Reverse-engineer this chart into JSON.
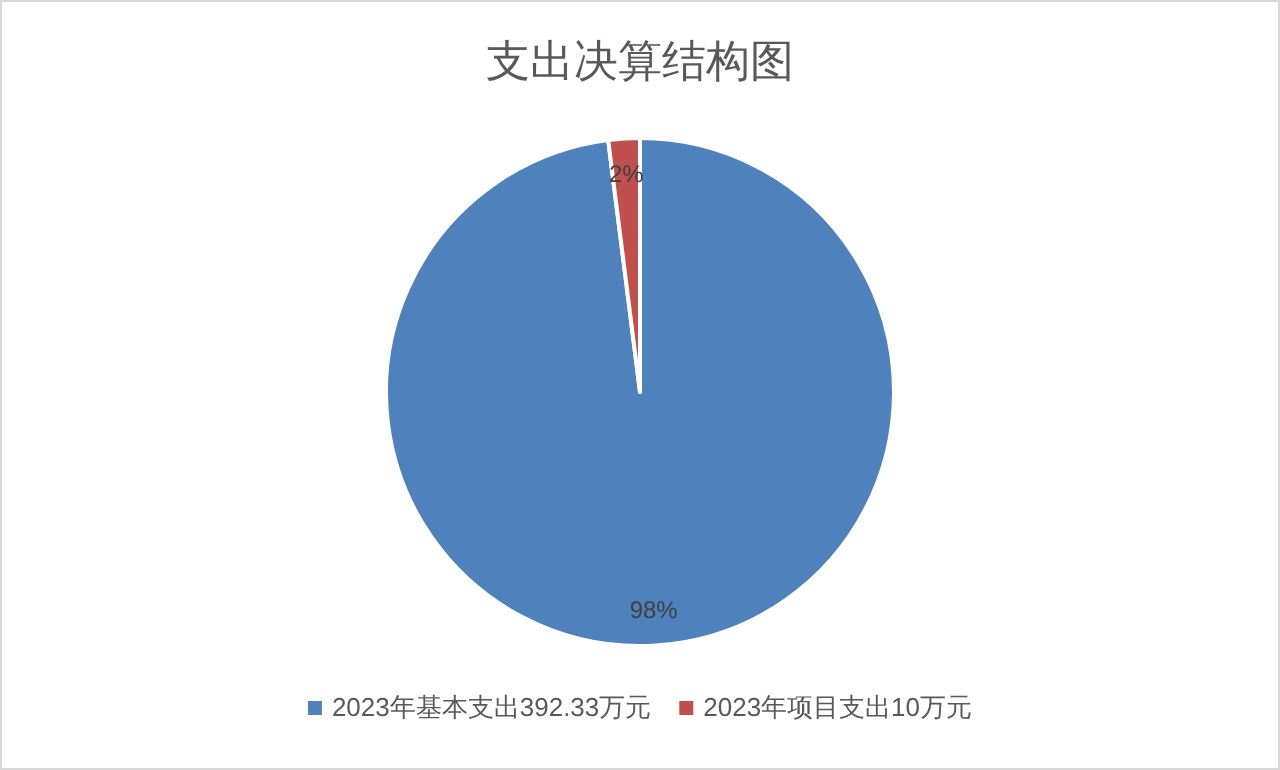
{
  "chart_data": {
    "type": "pie",
    "title": "支出决算结构图",
    "categories": [
      "2023年基本支出392.33万元",
      "2023年项目支出10万元"
    ],
    "values": [
      98,
      2
    ],
    "colors": [
      "#4f81bd",
      "#c0504d"
    ],
    "value_labels": [
      "98%",
      "2%"
    ],
    "legend": "bottom"
  }
}
